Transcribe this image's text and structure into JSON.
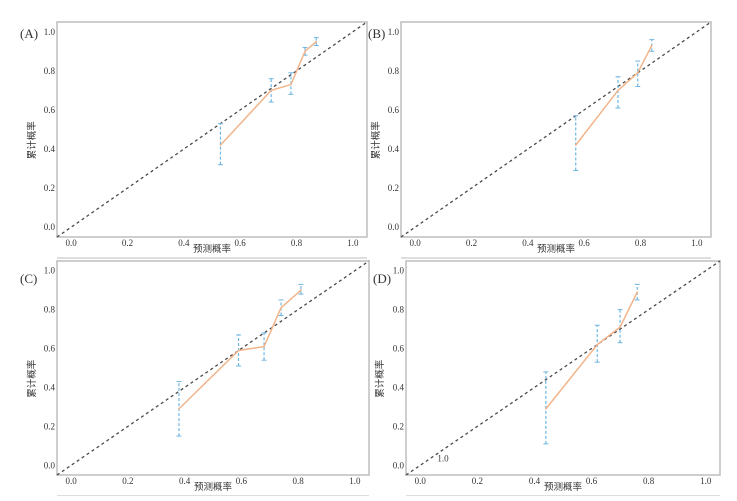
{
  "colors": {
    "frame": "#bdbdbd",
    "diagonal": "#4a4a4a",
    "curve": "#f2b48a",
    "errorbar": "#6fb7e3"
  },
  "chart_data": [
    {
      "type": "line",
      "panel_label": "(A)",
      "xlabel": "预测概率",
      "ylabel": "累计概率",
      "xlim": [
        -0.05,
        1.05
      ],
      "ylim": [
        -0.05,
        1.05
      ],
      "xticks": [
        "0.0",
        "0.2",
        "0.4",
        "0.6",
        "0.8",
        "1.0"
      ],
      "yticks": [
        "0.0",
        "0.2",
        "0.4",
        "0.6",
        "0.8",
        "1.0"
      ],
      "reference": "diagonal",
      "points": [
        {
          "x": 0.53,
          "y": 0.42,
          "lo": 0.32,
          "hi": 0.53
        },
        {
          "x": 0.71,
          "y": 0.7,
          "lo": 0.64,
          "hi": 0.76
        },
        {
          "x": 0.78,
          "y": 0.73,
          "lo": 0.68,
          "hi": 0.79
        },
        {
          "x": 0.83,
          "y": 0.9,
          "lo": 0.88,
          "hi": 0.92
        },
        {
          "x": 0.87,
          "y": 0.95,
          "lo": 0.93,
          "hi": 0.97
        }
      ]
    },
    {
      "type": "line",
      "panel_label": "(B)",
      "xlabel": "预测概率",
      "ylabel": "累计概率",
      "xlim": [
        -0.05,
        1.05
      ],
      "ylim": [
        -0.05,
        1.05
      ],
      "xticks": [
        "0.0",
        "0.2",
        "0.4",
        "0.6",
        "0.8",
        "1.0"
      ],
      "yticks": [
        "0.0",
        "0.2",
        "0.4",
        "0.6",
        "0.8",
        "1.0"
      ],
      "reference": "diagonal",
      "points": [
        {
          "x": 0.57,
          "y": 0.42,
          "lo": 0.29,
          "hi": 0.57
        },
        {
          "x": 0.72,
          "y": 0.7,
          "lo": 0.61,
          "hi": 0.77
        },
        {
          "x": 0.79,
          "y": 0.79,
          "lo": 0.72,
          "hi": 0.85
        },
        {
          "x": 0.84,
          "y": 0.93,
          "lo": 0.9,
          "hi": 0.96
        }
      ]
    },
    {
      "type": "line",
      "panel_label": "(C)",
      "xlabel": "预测概率",
      "ylabel": "累计概率",
      "xlim": [
        -0.05,
        1.05
      ],
      "ylim": [
        -0.05,
        1.05
      ],
      "xticks": [
        "0.0",
        "0.2",
        "0.4",
        "0.6",
        "0.8",
        "1.0"
      ],
      "yticks": [
        "0.0",
        "0.2",
        "0.4",
        "0.6",
        "0.8",
        "1.0"
      ],
      "reference": "diagonal",
      "points": [
        {
          "x": 0.38,
          "y": 0.29,
          "lo": 0.15,
          "hi": 0.43
        },
        {
          "x": 0.59,
          "y": 0.59,
          "lo": 0.51,
          "hi": 0.67
        },
        {
          "x": 0.68,
          "y": 0.61,
          "lo": 0.54,
          "hi": 0.68
        },
        {
          "x": 0.74,
          "y": 0.81,
          "lo": 0.77,
          "hi": 0.85
        },
        {
          "x": 0.81,
          "y": 0.9,
          "lo": 0.88,
          "hi": 0.93
        }
      ]
    },
    {
      "type": "line",
      "panel_label": "(D)",
      "xlabel": "预测概率",
      "ylabel": "累计概率",
      "xlim": [
        -0.05,
        1.05
      ],
      "ylim": [
        -0.05,
        1.05
      ],
      "xticks": [
        "0.0",
        "0.2",
        "0.4",
        "0.6",
        "0.8",
        "1.0"
      ],
      "yticks": [
        "0.0",
        "0.2",
        "0.4",
        "0.6",
        "0.8",
        "1.0"
      ],
      "reference": "diagonal",
      "annotation": {
        "text": "1.0",
        "x": 0.06,
        "y": 0.02
      },
      "points": [
        {
          "x": 0.44,
          "y": 0.29,
          "lo": 0.11,
          "hi": 0.48
        },
        {
          "x": 0.62,
          "y": 0.62,
          "lo": 0.53,
          "hi": 0.72
        },
        {
          "x": 0.7,
          "y": 0.71,
          "lo": 0.63,
          "hi": 0.8
        },
        {
          "x": 0.76,
          "y": 0.89,
          "lo": 0.85,
          "hi": 0.93
        }
      ]
    }
  ]
}
